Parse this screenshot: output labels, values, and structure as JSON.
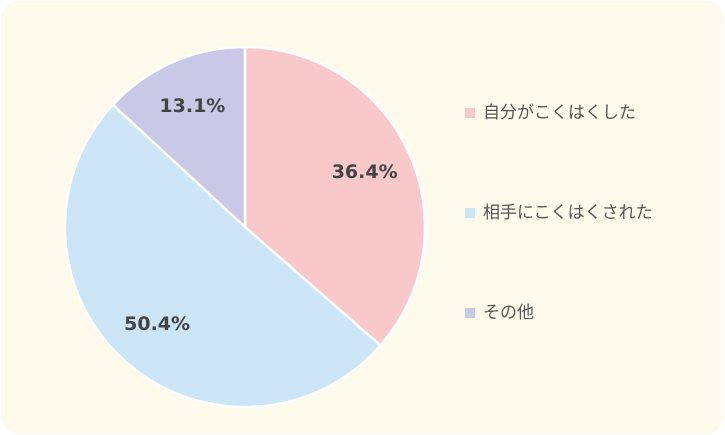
{
  "chart_data": {
    "type": "pie",
    "categories": [
      "自分がこくはくした",
      "相手にこくはくされた",
      "その他"
    ],
    "values": [
      36.4,
      50.4,
      13.1
    ],
    "value_labels": [
      "36.4%",
      "50.4%",
      "13.1%"
    ],
    "colors": [
      "#f8c8cb",
      "#cce6f7",
      "#c9c8e6"
    ],
    "legend": "right"
  }
}
